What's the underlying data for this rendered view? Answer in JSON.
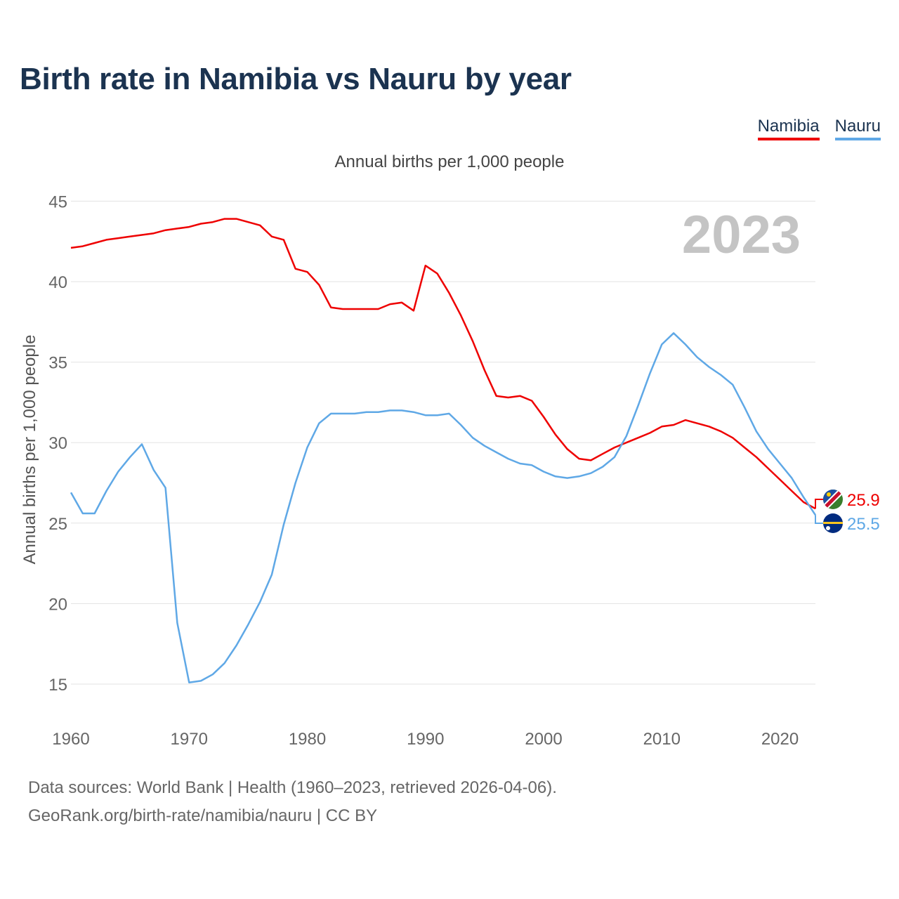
{
  "title": "Birth rate in Namibia vs Nauru by year",
  "legend": [
    {
      "label": "Namibia",
      "color": "#ee0000"
    },
    {
      "label": "Nauru",
      "color": "#5fa8e6"
    }
  ],
  "footer": {
    "line1": "Data sources: World Bank | Health (1960–2023, retrieved 2026-04-06).",
    "line2": "GeoRank.org/birth-rate/namibia/nauru | CC BY"
  },
  "chart_data": {
    "type": "line",
    "title": "Annual births per 1,000 people",
    "ylabel": "Annual births per 1,000 people",
    "xlabel": "",
    "ylim": [
      13,
      45
    ],
    "xlim": [
      1960,
      2023
    ],
    "yticks": [
      15,
      20,
      25,
      30,
      35,
      40,
      45
    ],
    "xticks": [
      1960,
      1970,
      1980,
      1990,
      2000,
      2010,
      2020
    ],
    "year_label": "2023",
    "x": [
      1960,
      1961,
      1962,
      1963,
      1964,
      1965,
      1966,
      1967,
      1968,
      1969,
      1970,
      1971,
      1972,
      1973,
      1974,
      1975,
      1976,
      1977,
      1978,
      1979,
      1980,
      1981,
      1982,
      1983,
      1984,
      1985,
      1986,
      1987,
      1988,
      1989,
      1990,
      1991,
      1992,
      1993,
      1994,
      1995,
      1996,
      1997,
      1998,
      1999,
      2000,
      2001,
      2002,
      2003,
      2004,
      2005,
      2006,
      2007,
      2008,
      2009,
      2010,
      2011,
      2012,
      2013,
      2014,
      2015,
      2016,
      2017,
      2018,
      2019,
      2020,
      2021,
      2022,
      2023
    ],
    "series": [
      {
        "name": "Namibia",
        "color": "#ee0000",
        "end_label": "25.9",
        "flag": "namibia-flag-icon",
        "values": [
          42.1,
          42.2,
          42.4,
          42.6,
          42.7,
          42.8,
          42.9,
          43.0,
          43.2,
          43.3,
          43.4,
          43.6,
          43.7,
          43.9,
          43.9,
          43.7,
          43.5,
          42.8,
          42.6,
          40.8,
          40.6,
          39.8,
          38.4,
          38.3,
          38.3,
          38.3,
          38.3,
          38.6,
          38.7,
          38.2,
          41.0,
          40.5,
          39.3,
          37.9,
          36.3,
          34.5,
          32.9,
          32.8,
          32.9,
          32.6,
          31.6,
          30.5,
          29.6,
          29.0,
          28.9,
          29.3,
          29.7,
          30.0,
          30.3,
          30.6,
          31.0,
          31.1,
          31.4,
          31.2,
          31.0,
          30.7,
          30.3,
          29.7,
          29.1,
          28.4,
          27.7,
          27.0,
          26.3,
          25.9
        ]
      },
      {
        "name": "Nauru",
        "color": "#5fa8e6",
        "end_label": "25.5",
        "flag": "nauru-flag-icon",
        "values": [
          26.9,
          25.6,
          25.6,
          27.0,
          28.2,
          29.1,
          29.9,
          28.3,
          27.2,
          18.8,
          15.1,
          15.2,
          15.6,
          16.3,
          17.4,
          18.7,
          20.1,
          21.8,
          24.9,
          27.5,
          29.7,
          31.2,
          31.8,
          31.8,
          31.8,
          31.9,
          31.9,
          32.0,
          32.0,
          31.9,
          31.7,
          31.7,
          31.8,
          31.1,
          30.3,
          29.8,
          29.4,
          29.0,
          28.7,
          28.6,
          28.2,
          27.9,
          27.8,
          27.9,
          28.1,
          28.5,
          29.1,
          30.4,
          32.3,
          34.3,
          36.1,
          36.8,
          36.1,
          35.3,
          34.7,
          34.2,
          33.6,
          32.2,
          30.7,
          29.6,
          28.7,
          27.8,
          26.6,
          25.5
        ]
      }
    ]
  }
}
